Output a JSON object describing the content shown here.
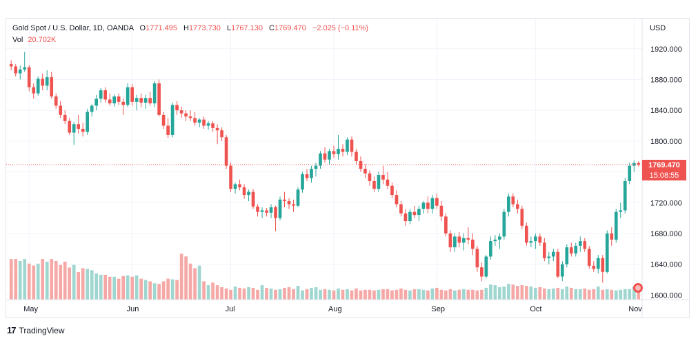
{
  "legend": {
    "symbol": "Gold Spot / U.S. Dollar, 1D, OANDA",
    "open_label": "O",
    "open": "1771.495",
    "high_label": "H",
    "high": "1773.730",
    "low_label": "L",
    "low": "1767.130",
    "close_label": "C",
    "close": "1769.470",
    "change": "−2.025 (−0.11%)",
    "vol_label": "Vol",
    "vol": "20.702K"
  },
  "currency": "USD",
  "last_price": "1769.470",
  "countdown": "15:08:55",
  "brand": "TradingView",
  "colors": {
    "up": "#26a69a",
    "down": "#ef5350",
    "up_vol": "#9fd6cf",
    "down_vol": "#f5a8a6"
  },
  "chart_data": {
    "type": "candlestick",
    "title": "Gold Spot / U.S. Dollar, 1D, OANDA",
    "currency": "USD",
    "ylim": [
      1586,
      1935
    ],
    "yticks": [
      1600,
      1640,
      1680,
      1720,
      1760,
      1800,
      1840,
      1880,
      1920
    ],
    "ytick_labels": [
      "1600.000",
      "1640.000",
      "1680.000",
      "1720.000",
      "1760.000",
      "1800.000",
      "1840.000",
      "1880.000",
      "1920.000"
    ],
    "month_labels": [
      {
        "label": "May",
        "index": 4
      },
      {
        "label": "Jun",
        "index": 27
      },
      {
        "label": "Jul",
        "index": 49
      },
      {
        "label": "Aug",
        "index": 72
      },
      {
        "label": "Sep",
        "index": 95
      },
      {
        "label": "Oct",
        "index": 117
      },
      {
        "label": "Nov",
        "index": 139
      }
    ],
    "grid": true,
    "last_price_line": 1769.47,
    "candles": [
      [
        1900,
        1905,
        1892,
        1897
      ],
      [
        1897,
        1900,
        1884,
        1888
      ],
      [
        1888,
        1898,
        1880,
        1893
      ],
      [
        1893,
        1916,
        1890,
        1896
      ],
      [
        1896,
        1899,
        1865,
        1870
      ],
      [
        1870,
        1875,
        1855,
        1862
      ],
      [
        1862,
        1884,
        1859,
        1881
      ],
      [
        1881,
        1888,
        1866,
        1872
      ],
      [
        1872,
        1892,
        1866,
        1883
      ],
      [
        1883,
        1890,
        1855,
        1858
      ],
      [
        1858,
        1862,
        1842,
        1846
      ],
      [
        1846,
        1852,
        1830,
        1834
      ],
      [
        1834,
        1840,
        1822,
        1826
      ],
      [
        1826,
        1830,
        1808,
        1811
      ],
      [
        1811,
        1825,
        1795,
        1822
      ],
      [
        1822,
        1834,
        1810,
        1816
      ],
      [
        1816,
        1824,
        1806,
        1812
      ],
      [
        1812,
        1842,
        1808,
        1838
      ],
      [
        1838,
        1848,
        1832,
        1846
      ],
      [
        1846,
        1860,
        1840,
        1855
      ],
      [
        1855,
        1869,
        1850,
        1866
      ],
      [
        1866,
        1870,
        1850,
        1854
      ],
      [
        1854,
        1862,
        1846,
        1849
      ],
      [
        1849,
        1861,
        1845,
        1858
      ],
      [
        1858,
        1862,
        1847,
        1851
      ],
      [
        1851,
        1856,
        1834,
        1847
      ],
      [
        1847,
        1875,
        1844,
        1870
      ],
      [
        1870,
        1874,
        1846,
        1851
      ],
      [
        1851,
        1860,
        1840,
        1856
      ],
      [
        1856,
        1862,
        1844,
        1850
      ],
      [
        1850,
        1860,
        1842,
        1856
      ],
      [
        1856,
        1864,
        1846,
        1849
      ],
      [
        1849,
        1878,
        1844,
        1875
      ],
      [
        1875,
        1880,
        1832,
        1834
      ],
      [
        1834,
        1838,
        1816,
        1820
      ],
      [
        1820,
        1830,
        1804,
        1808
      ],
      [
        1808,
        1850,
        1805,
        1847
      ],
      [
        1847,
        1852,
        1834,
        1840
      ],
      [
        1840,
        1845,
        1830,
        1836
      ],
      [
        1836,
        1840,
        1826,
        1832
      ],
      [
        1832,
        1840,
        1826,
        1830
      ],
      [
        1830,
        1838,
        1820,
        1824
      ],
      [
        1824,
        1830,
        1818,
        1828
      ],
      [
        1828,
        1832,
        1816,
        1820
      ],
      [
        1820,
        1826,
        1815,
        1823
      ],
      [
        1823,
        1826,
        1812,
        1817
      ],
      [
        1817,
        1822,
        1796,
        1814
      ],
      [
        1814,
        1818,
        1800,
        1805
      ],
      [
        1805,
        1808,
        1764,
        1768
      ],
      [
        1768,
        1772,
        1734,
        1738
      ],
      [
        1738,
        1746,
        1732,
        1744
      ],
      [
        1744,
        1750,
        1736,
        1740
      ],
      [
        1740,
        1744,
        1725,
        1730
      ],
      [
        1730,
        1737,
        1722,
        1734
      ],
      [
        1734,
        1738,
        1712,
        1715
      ],
      [
        1715,
        1718,
        1702,
        1708
      ],
      [
        1708,
        1714,
        1700,
        1710
      ],
      [
        1710,
        1713,
        1702,
        1707
      ],
      [
        1707,
        1718,
        1700,
        1714
      ],
      [
        1714,
        1716,
        1683,
        1700
      ],
      [
        1700,
        1728,
        1697,
        1724
      ],
      [
        1724,
        1734,
        1714,
        1722
      ],
      [
        1722,
        1726,
        1712,
        1718
      ],
      [
        1718,
        1724,
        1708,
        1716
      ],
      [
        1716,
        1740,
        1714,
        1737
      ],
      [
        1737,
        1760,
        1733,
        1757
      ],
      [
        1757,
        1764,
        1748,
        1752
      ],
      [
        1752,
        1768,
        1746,
        1764
      ],
      [
        1764,
        1772,
        1754,
        1768
      ],
      [
        1768,
        1787,
        1764,
        1784
      ],
      [
        1784,
        1792,
        1772,
        1776
      ],
      [
        1776,
        1790,
        1770,
        1787
      ],
      [
        1787,
        1794,
        1778,
        1783
      ],
      [
        1783,
        1808,
        1776,
        1790
      ],
      [
        1790,
        1796,
        1780,
        1786
      ],
      [
        1786,
        1805,
        1782,
        1802
      ],
      [
        1802,
        1806,
        1780,
        1786
      ],
      [
        1786,
        1790,
        1770,
        1774
      ],
      [
        1774,
        1780,
        1760,
        1764
      ],
      [
        1764,
        1770,
        1752,
        1758
      ],
      [
        1758,
        1762,
        1742,
        1748
      ],
      [
        1748,
        1754,
        1734,
        1738
      ],
      [
        1738,
        1760,
        1734,
        1756
      ],
      [
        1756,
        1768,
        1744,
        1750
      ],
      [
        1750,
        1760,
        1738,
        1742
      ],
      [
        1742,
        1746,
        1726,
        1730
      ],
      [
        1730,
        1736,
        1714,
        1718
      ],
      [
        1718,
        1722,
        1702,
        1706
      ],
      [
        1706,
        1712,
        1690,
        1696
      ],
      [
        1696,
        1712,
        1692,
        1708
      ],
      [
        1708,
        1716,
        1700,
        1704
      ],
      [
        1704,
        1716,
        1696,
        1712
      ],
      [
        1712,
        1722,
        1706,
        1720
      ],
      [
        1720,
        1728,
        1706,
        1712
      ],
      [
        1712,
        1730,
        1706,
        1726
      ],
      [
        1726,
        1732,
        1712,
        1716
      ],
      [
        1716,
        1722,
        1696,
        1702
      ],
      [
        1702,
        1706,
        1676,
        1680
      ],
      [
        1680,
        1684,
        1656,
        1662
      ],
      [
        1662,
        1680,
        1656,
        1676
      ],
      [
        1676,
        1682,
        1662,
        1668
      ],
      [
        1668,
        1680,
        1658,
        1674
      ],
      [
        1674,
        1688,
        1666,
        1672
      ],
      [
        1672,
        1680,
        1652,
        1660
      ],
      [
        1660,
        1664,
        1630,
        1636
      ],
      [
        1636,
        1642,
        1618,
        1624
      ],
      [
        1624,
        1652,
        1622,
        1650
      ],
      [
        1650,
        1676,
        1646,
        1670
      ],
      [
        1670,
        1678,
        1664,
        1672
      ],
      [
        1672,
        1680,
        1660,
        1676
      ],
      [
        1676,
        1712,
        1672,
        1708
      ],
      [
        1708,
        1732,
        1702,
        1728
      ],
      [
        1728,
        1732,
        1714,
        1718
      ],
      [
        1718,
        1724,
        1706,
        1712
      ],
      [
        1712,
        1716,
        1686,
        1690
      ],
      [
        1690,
        1694,
        1664,
        1668
      ],
      [
        1668,
        1676,
        1662,
        1670
      ],
      [
        1670,
        1680,
        1660,
        1676
      ],
      [
        1676,
        1680,
        1664,
        1668
      ],
      [
        1668,
        1674,
        1644,
        1648
      ],
      [
        1648,
        1656,
        1640,
        1650
      ],
      [
        1650,
        1660,
        1644,
        1656
      ],
      [
        1656,
        1660,
        1622,
        1624
      ],
      [
        1624,
        1644,
        1618,
        1640
      ],
      [
        1640,
        1666,
        1636,
        1662
      ],
      [
        1662,
        1668,
        1650,
        1654
      ],
      [
        1654,
        1668,
        1650,
        1664
      ],
      [
        1664,
        1676,
        1656,
        1670
      ],
      [
        1670,
        1674,
        1656,
        1660
      ],
      [
        1660,
        1664,
        1634,
        1638
      ],
      [
        1638,
        1644,
        1630,
        1634
      ],
      [
        1634,
        1652,
        1628,
        1648
      ],
      [
        1648,
        1652,
        1616,
        1630
      ],
      [
        1630,
        1684,
        1628,
        1680
      ],
      [
        1680,
        1688,
        1664,
        1672
      ],
      [
        1672,
        1712,
        1668,
        1708
      ],
      [
        1708,
        1720,
        1700,
        1710
      ],
      [
        1710,
        1752,
        1706,
        1748
      ],
      [
        1748,
        1772,
        1744,
        1768
      ],
      [
        1768,
        1775,
        1760,
        1771.5
      ],
      [
        1771.5,
        1773.7,
        1767.1,
        1769.47
      ]
    ],
    "volumes": [
      62,
      62,
      59,
      62,
      55,
      52,
      55,
      62,
      58,
      62,
      59,
      53,
      58,
      49,
      53,
      42,
      48,
      47,
      45,
      40,
      38,
      38,
      35,
      35,
      32,
      36,
      37,
      35,
      37,
      32,
      30,
      28,
      25,
      24,
      28,
      32,
      31,
      30,
      70,
      66,
      55,
      48,
      52,
      28,
      22,
      26,
      22,
      19,
      17,
      15,
      20,
      18,
      17,
      19,
      18,
      15,
      22,
      18,
      17,
      15,
      16,
      18,
      19,
      16,
      21,
      14,
      16,
      18,
      19,
      15,
      16,
      15,
      14,
      17,
      15,
      16,
      14,
      17,
      14,
      15,
      15,
      14,
      15,
      16,
      16,
      14,
      15,
      17,
      15,
      14,
      16,
      16,
      15,
      14,
      17,
      18,
      15,
      14,
      16,
      14,
      15,
      16,
      15,
      15,
      14,
      15,
      18,
      23,
      22,
      19,
      20,
      24,
      23,
      21,
      22,
      21,
      20,
      18,
      19,
      17,
      16,
      17,
      18,
      16,
      20,
      18,
      16,
      16,
      17,
      15,
      16,
      20,
      15,
      16,
      15,
      14,
      15,
      16,
      16,
      20,
      20
    ]
  }
}
